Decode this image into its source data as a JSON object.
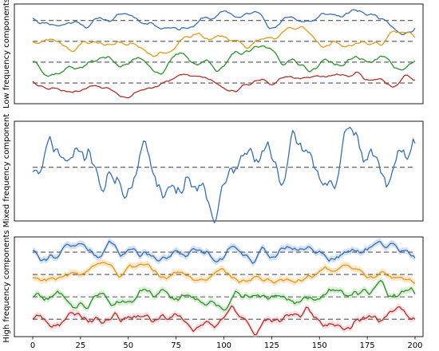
{
  "chart_data": [
    {
      "type": "line",
      "panel": "top",
      "ylabel": "Low frequency components",
      "x_range": [
        0,
        200
      ],
      "grid": false,
      "legend": "none",
      "series": [
        {
          "color": "#3a6fb0",
          "offset": 0.0,
          "amplitude": 0.28,
          "seed": 11,
          "freq": 0.35
        },
        {
          "color": "#e19a1a",
          "offset": -1.0,
          "amplitude": 0.3,
          "seed": 23,
          "freq": 0.35
        },
        {
          "color": "#2e8f2e",
          "offset": -2.0,
          "amplitude": 0.32,
          "seed": 37,
          "freq": 0.35
        },
        {
          "color": "#b0312c",
          "offset": -3.0,
          "amplitude": 0.3,
          "seed": 53,
          "freq": 0.35
        }
      ],
      "baselines": [
        0,
        -1,
        -2,
        -3
      ],
      "ylim": [
        -3.8,
        0.6
      ]
    },
    {
      "type": "line",
      "panel": "middle",
      "ylabel": "Mixed frequency component",
      "x_range": [
        0,
        200
      ],
      "grid": false,
      "legend": "none",
      "series": [
        {
          "color": "#3a6fb0",
          "offset": 0.0,
          "amplitude": 1.0,
          "seed": 71,
          "freq": 0.6
        }
      ],
      "baselines": [
        0
      ],
      "ylim": [
        -2.6,
        2.2
      ]
    },
    {
      "type": "line",
      "panel": "bottom",
      "ylabel": "High frequency components",
      "x_range": [
        0,
        200
      ],
      "xticks": [
        0,
        25,
        50,
        75,
        100,
        125,
        150,
        175,
        200
      ],
      "grid": false,
      "legend": "none",
      "series": [
        {
          "color": "#3a6fb0",
          "offset": 0.0,
          "amplitude": 0.22,
          "seed": 91,
          "freq": 0.9,
          "band": "#a9c4e8"
        },
        {
          "color": "#e19a1a",
          "offset": -1.0,
          "amplitude": 0.24,
          "seed": 103,
          "freq": 0.9,
          "band": "#f6cf9a"
        },
        {
          "color": "#2e8f2e",
          "offset": -2.0,
          "amplitude": 0.24,
          "seed": 127,
          "freq": 0.9,
          "band": "#b7dfb0"
        },
        {
          "color": "#b0312c",
          "offset": -3.0,
          "amplitude": 0.24,
          "seed": 149,
          "freq": 0.9,
          "band": "#f2c0c4"
        }
      ],
      "baselines": [
        0,
        -1,
        -2,
        -3
      ],
      "ylim": [
        -3.6,
        0.5
      ]
    }
  ]
}
